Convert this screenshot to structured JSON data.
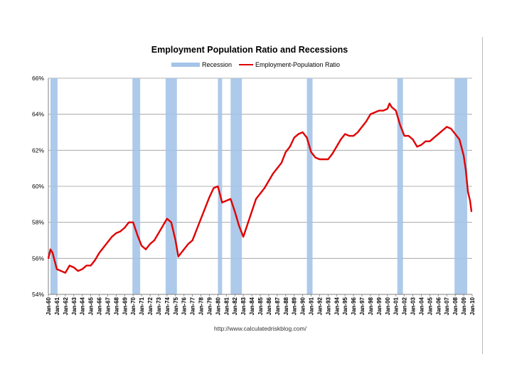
{
  "chart_data": {
    "type": "line",
    "title": "Employment Population Ratio and Recessions",
    "xlabel": "",
    "ylabel": "",
    "source": "http://www.calculatedriskblog.com/",
    "legend": {
      "placement": "top",
      "items": [
        {
          "name": "Recession",
          "kind": "band",
          "color": "#a4c4e8"
        },
        {
          "name": "Employment-Population Ratio",
          "kind": "line",
          "color": "#e00000"
        }
      ]
    },
    "ylim": [
      54,
      66
    ],
    "yticks": [
      54,
      56,
      58,
      60,
      62,
      64,
      66
    ],
    "ytick_labels": [
      "54%",
      "56%",
      "58%",
      "60%",
      "62%",
      "64%",
      "66%"
    ],
    "xlim": [
      1960.0,
      2010.0
    ],
    "xtick_labels": [
      "Jan-60",
      "Jan-61",
      "Jan-62",
      "Jan-63",
      "Jan-64",
      "Jan-65",
      "Jan-66",
      "Jan-67",
      "Jan-68",
      "Jan-69",
      "Jan-70",
      "Jan-71",
      "Jan-72",
      "Jan-73",
      "Jan-74",
      "Jan-75",
      "Jan-76",
      "Jan-77",
      "Jan-78",
      "Jan-79",
      "Jan-80",
      "Jan-81",
      "Jan-82",
      "Jan-83",
      "Jan-84",
      "Jan-85",
      "Jan-86",
      "Jan-87",
      "Jan-88",
      "Jan-89",
      "Jan-90",
      "Jan-91",
      "Jan-92",
      "Jan-93",
      "Jan-94",
      "Jan-95",
      "Jan-96",
      "Jan-97",
      "Jan-98",
      "Jan-99",
      "Jan-00",
      "Jan-01",
      "Jan-02",
      "Jan-03",
      "Jan-04",
      "Jan-05",
      "Jan-06",
      "Jan-07",
      "Jan-08",
      "Jan-09",
      "Jan-10"
    ],
    "grid": true,
    "recessions": [
      {
        "start": "Apr-60",
        "end": "Feb-61"
      },
      {
        "start": "Dec-69",
        "end": "Nov-70"
      },
      {
        "start": "Nov-73",
        "end": "Mar-75"
      },
      {
        "start": "Jan-80",
        "end": "Jul-80"
      },
      {
        "start": "Jul-81",
        "end": "Nov-82"
      },
      {
        "start": "Jul-90",
        "end": "Mar-91"
      },
      {
        "start": "Mar-01",
        "end": "Nov-01"
      },
      {
        "start": "Dec-07",
        "end": "Jun-09"
      }
    ],
    "series": [
      {
        "name": "Employment-Population Ratio",
        "x": [
          "Jan-60",
          "Apr-60",
          "Jul-60",
          "Jan-61",
          "Jul-61",
          "Jan-62",
          "Jul-62",
          "Jan-63",
          "Jul-63",
          "Jan-64",
          "Jul-64",
          "Jan-65",
          "Jul-65",
          "Jan-66",
          "Jul-66",
          "Jan-67",
          "Jul-67",
          "Jan-68",
          "Jul-68",
          "Jan-69",
          "Jul-69",
          "Jan-70",
          "Jul-70",
          "Jan-71",
          "Jul-71",
          "Jan-72",
          "Jul-72",
          "Jan-73",
          "Jul-73",
          "Jan-74",
          "Jul-74",
          "Jan-75",
          "May-75",
          "Jan-76",
          "Jul-76",
          "Jan-77",
          "Jul-77",
          "Jan-78",
          "Jul-78",
          "Jan-79",
          "Jul-79",
          "Jan-80",
          "Jul-80",
          "Jan-81",
          "Jul-81",
          "Jan-82",
          "Jul-82",
          "Jan-83",
          "Jul-83",
          "Jan-84",
          "Jul-84",
          "Jan-85",
          "Jul-85",
          "Jan-86",
          "Jul-86",
          "Jan-87",
          "Jul-87",
          "Jan-88",
          "Jul-88",
          "Jan-89",
          "Jul-89",
          "Jan-90",
          "Jul-90",
          "Jan-91",
          "Jul-91",
          "Jan-92",
          "Jul-92",
          "Jan-93",
          "Jul-93",
          "Jan-94",
          "Jul-94",
          "Jan-95",
          "Jul-95",
          "Jan-96",
          "Jul-96",
          "Jan-97",
          "Jul-97",
          "Jan-98",
          "Jul-98",
          "Jan-99",
          "Jul-99",
          "Jan-00",
          "Apr-00",
          "Jul-00",
          "Jan-01",
          "Jul-01",
          "Jan-02",
          "Jul-02",
          "Jan-03",
          "Jul-03",
          "Jan-04",
          "Jul-04",
          "Jan-05",
          "Jul-05",
          "Jan-06",
          "Jul-06",
          "Jan-07",
          "Jul-07",
          "Jan-08",
          "Jul-08",
          "Jan-09",
          "Apr-09",
          "Jul-09",
          "Oct-09",
          "Dec-09"
        ],
        "values": [
          56.0,
          56.5,
          56.3,
          55.4,
          55.3,
          55.2,
          55.6,
          55.5,
          55.3,
          55.4,
          55.6,
          55.6,
          55.9,
          56.3,
          56.6,
          56.9,
          57.2,
          57.4,
          57.5,
          57.7,
          58.0,
          58.0,
          57.3,
          56.7,
          56.5,
          56.8,
          57.0,
          57.4,
          57.8,
          58.2,
          58.0,
          57.0,
          56.1,
          56.5,
          56.8,
          57.0,
          57.6,
          58.2,
          58.8,
          59.4,
          59.9,
          60.0,
          59.1,
          59.2,
          59.3,
          58.6,
          57.8,
          57.2,
          57.9,
          58.6,
          59.3,
          59.6,
          59.9,
          60.3,
          60.7,
          61.0,
          61.3,
          61.9,
          62.2,
          62.7,
          62.9,
          63.0,
          62.7,
          61.9,
          61.6,
          61.5,
          61.5,
          61.5,
          61.8,
          62.2,
          62.6,
          62.9,
          62.8,
          62.8,
          63.0,
          63.3,
          63.6,
          64.0,
          64.1,
          64.2,
          64.2,
          64.3,
          64.6,
          64.4,
          64.2,
          63.4,
          62.8,
          62.8,
          62.6,
          62.2,
          62.3,
          62.5,
          62.5,
          62.7,
          62.9,
          63.1,
          63.3,
          63.2,
          62.9,
          62.6,
          61.7,
          60.9,
          59.7,
          59.2,
          58.6
        ]
      }
    ]
  }
}
